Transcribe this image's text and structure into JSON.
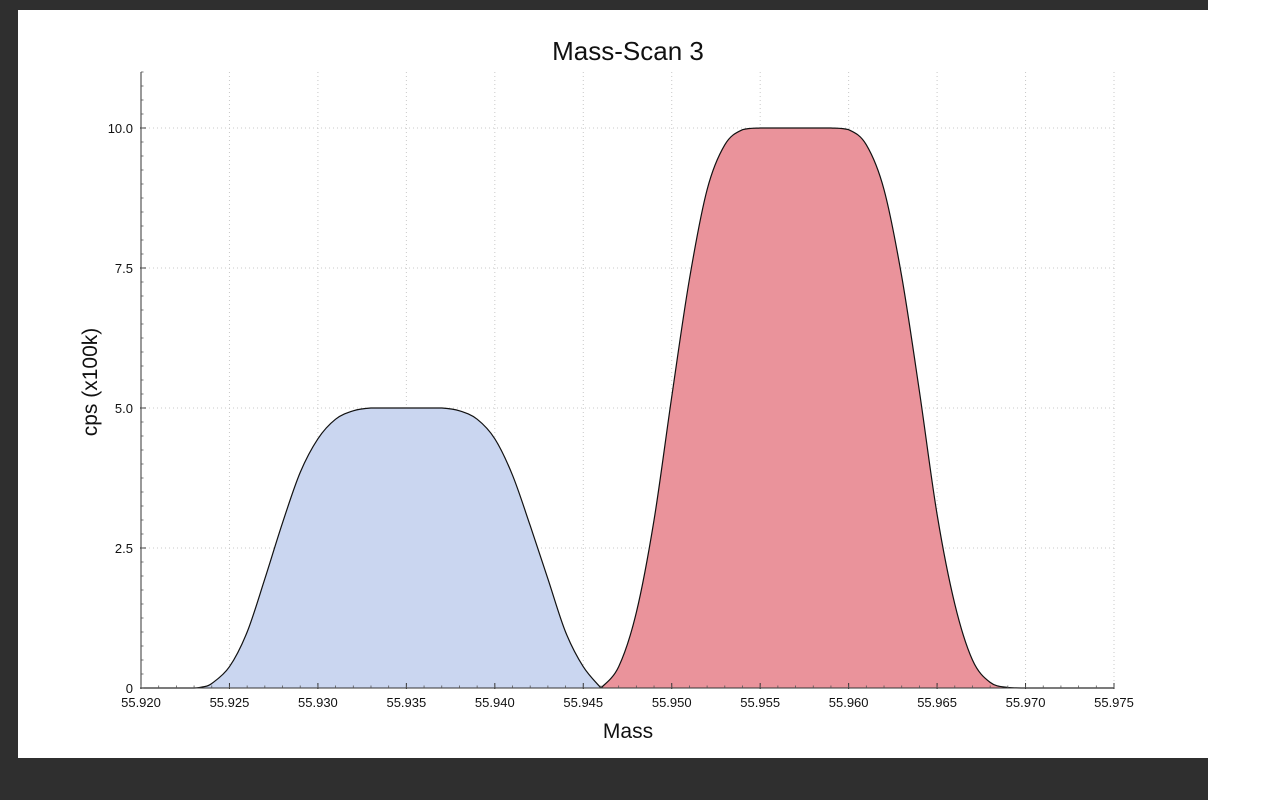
{
  "chart_data": {
    "type": "area",
    "title": "Mass-Scan 3",
    "xlabel": "Mass",
    "ylabel": "cps (x100k)",
    "xlim": [
      55.92,
      55.975
    ],
    "ylim": [
      0,
      11
    ],
    "x_ticks": [
      "55.920",
      "55.925",
      "55.930",
      "55.935",
      "55.940",
      "55.945",
      "55.950",
      "55.955",
      "55.960",
      "55.965",
      "55.970",
      "55.975"
    ],
    "y_ticks": [
      "0",
      "2.5",
      "5.0",
      "7.5",
      "10.0"
    ],
    "grid": true,
    "series": [
      {
        "color": "#cad6f0",
        "x": [
          55.92,
          55.922,
          55.923,
          55.9235,
          55.924,
          55.925,
          55.926,
          55.927,
          55.928,
          55.929,
          55.93,
          55.931,
          55.932,
          55.933,
          55.934,
          55.935,
          55.936,
          55.937,
          55.938,
          55.939,
          55.94,
          55.941,
          55.942,
          55.943,
          55.944,
          55.945,
          55.946
        ],
        "y": [
          0,
          0,
          0,
          0.02,
          0.08,
          0.38,
          1.0,
          1.95,
          2.95,
          3.85,
          4.45,
          4.8,
          4.95,
          5.0,
          5.0,
          5.0,
          5.0,
          5.0,
          4.95,
          4.8,
          4.45,
          3.8,
          2.9,
          1.95,
          1.0,
          0.38,
          0
        ]
      },
      {
        "color": "#ea939b",
        "x": [
          55.946,
          55.947,
          55.948,
          55.949,
          55.95,
          55.951,
          55.952,
          55.953,
          55.954,
          55.955,
          55.956,
          55.957,
          55.958,
          55.959,
          55.96,
          55.961,
          55.962,
          55.963,
          55.964,
          55.965,
          55.966,
          55.967,
          55.968,
          55.969,
          55.97,
          55.972,
          55.975
        ],
        "y": [
          0,
          0.38,
          1.35,
          3.0,
          5.2,
          7.3,
          8.9,
          9.7,
          9.97,
          10.0,
          10.0,
          10.0,
          10.0,
          10.0,
          9.97,
          9.7,
          8.9,
          7.35,
          5.3,
          3.1,
          1.5,
          0.5,
          0.1,
          0.01,
          0,
          0,
          0
        ]
      }
    ]
  }
}
